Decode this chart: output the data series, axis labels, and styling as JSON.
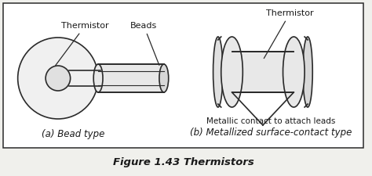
{
  "bg_color": "#f0f0ec",
  "box_color": "#ffffff",
  "line_color": "#2a2a2a",
  "text_color": "#1a1a1a",
  "caption": "Figure 1.43 Thermistors",
  "label_a": "(a) Bead type",
  "label_b": "(b) Metallized surface-contact type",
  "label_thermistor_a": "Thermistor",
  "label_beads": "Beads",
  "label_thermistor_b": "Thermistor",
  "label_metallic": "Metallic contact to attach leads",
  "caption_fontsize": 9.5,
  "label_fontsize": 8.5,
  "annot_fontsize": 8
}
